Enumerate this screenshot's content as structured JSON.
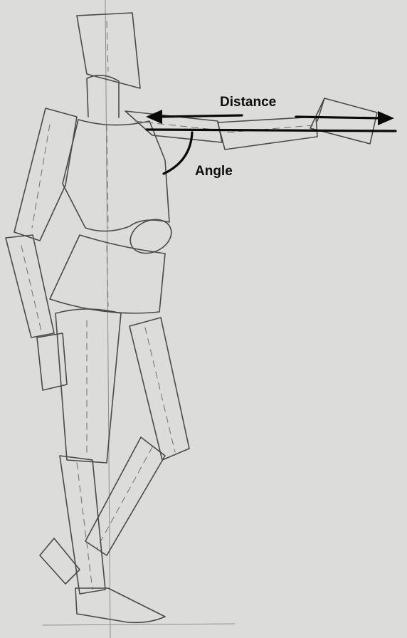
{
  "annotations": {
    "distance_label": "Distance",
    "angle_label": "Angle"
  },
  "colors": {
    "paper": "#dcdcdb",
    "pencil": "#4a4a4a",
    "annotation_ink": "#0a0a0a"
  }
}
